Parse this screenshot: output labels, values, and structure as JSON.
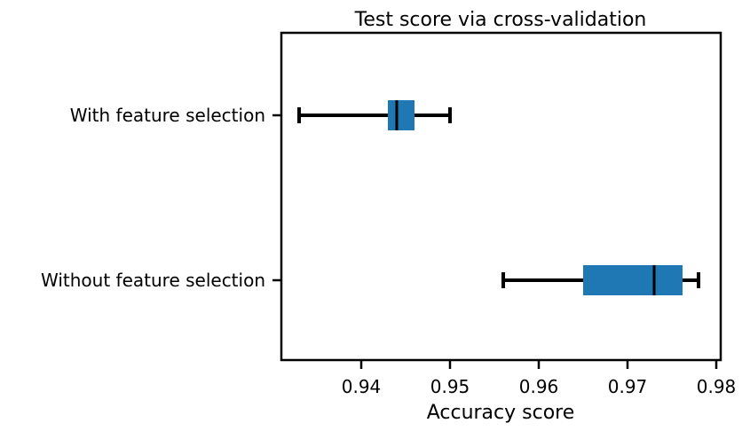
{
  "chart_data": {
    "type": "boxplot",
    "orientation": "horizontal",
    "title": "Test score via cross-validation",
    "xlabel": "Accuracy score",
    "ylabel": "",
    "xlim": [
      0.931,
      0.9805
    ],
    "x_ticks": [
      0.94,
      0.95,
      0.96,
      0.97,
      0.98
    ],
    "x_tick_labels": [
      "0.94",
      "0.95",
      "0.96",
      "0.97",
      "0.98"
    ],
    "categories": [
      "With feature selection",
      "Without feature selection"
    ],
    "boxes": [
      {
        "label": "With feature selection",
        "whisker_low": 0.933,
        "q1": 0.943,
        "median": 0.944,
        "q3": 0.946,
        "whisker_high": 0.95
      },
      {
        "label": "Without feature selection",
        "whisker_low": 0.956,
        "q1": 0.965,
        "median": 0.973,
        "q3": 0.9762,
        "whisker_high": 0.978
      }
    ],
    "box_color": "#1f77b4",
    "line_color": "#000000",
    "grid": false,
    "legend": false
  }
}
